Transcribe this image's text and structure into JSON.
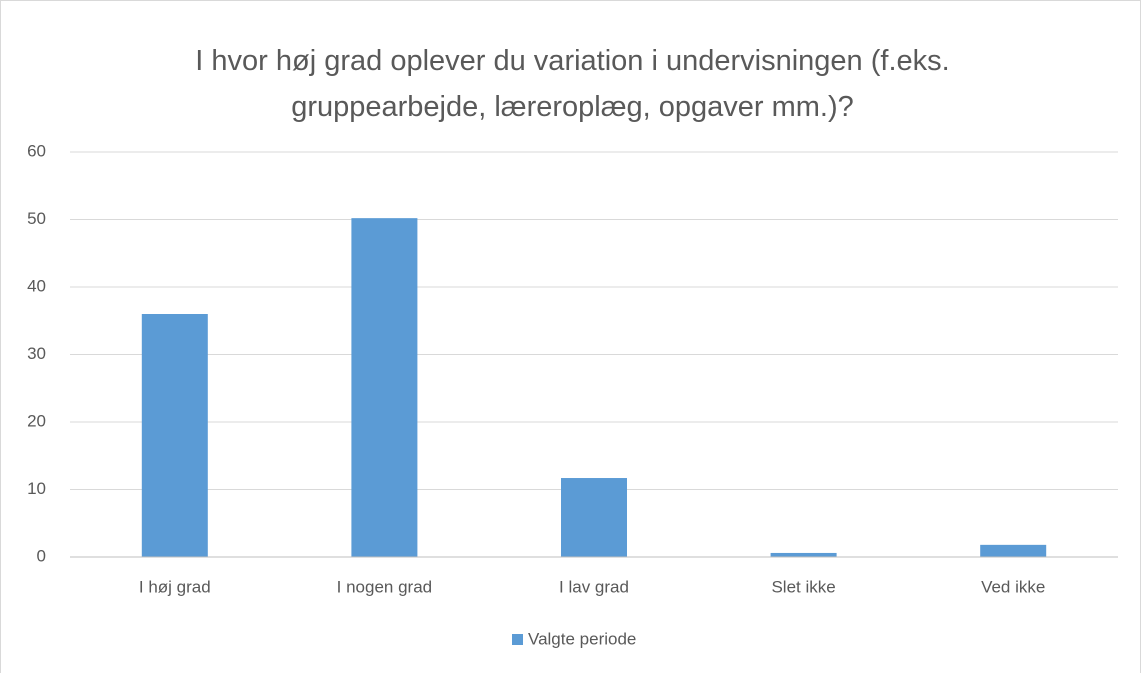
{
  "chart_data": {
    "type": "bar",
    "title": "I hvor høj grad oplever du variation i undervisningen (f.eks. gruppearbejde, læreroplæg, opgaver mm.)?",
    "categories": [
      "I høj grad",
      "I nogen grad",
      "I lav grad",
      "Slet ikke",
      "Ved ikke"
    ],
    "series": [
      {
        "name": "Valgte periode",
        "color": "#5b9bd5",
        "values": [
          36,
          50.2,
          11.7,
          0.6,
          1.8
        ]
      }
    ],
    "ylim": [
      0,
      60
    ],
    "yticks": [
      0,
      10,
      20,
      30,
      40,
      50,
      60
    ],
    "grid": true,
    "legend": "bottom"
  }
}
